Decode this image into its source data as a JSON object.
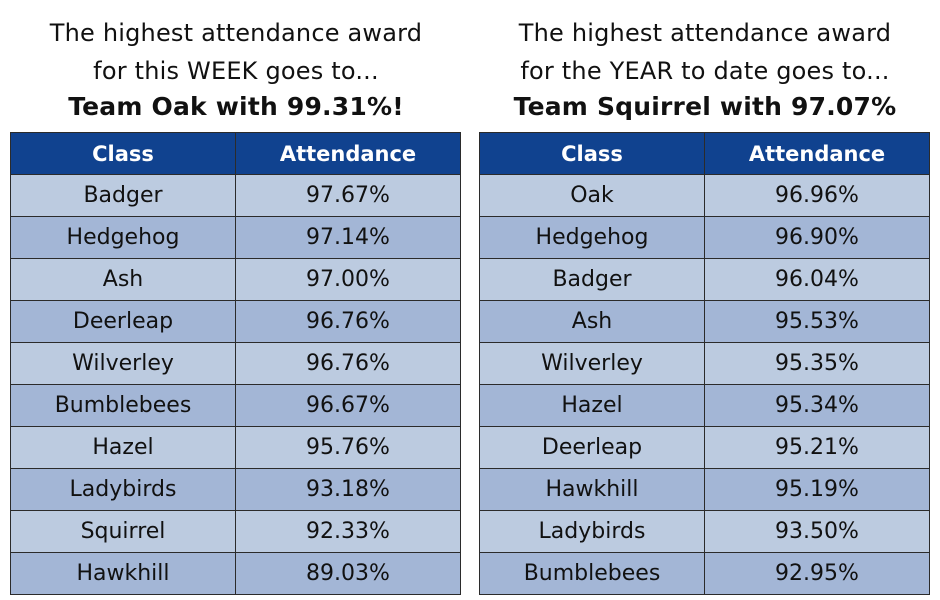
{
  "week": {
    "heading_line1": "The highest attendance award",
    "heading_line2": "for this WEEK goes to...",
    "winner": "Team Oak with 99.31%!",
    "columns": [
      "Class",
      "Attendance"
    ],
    "rows": [
      {
        "class": "Badger",
        "attendance": "97.67%"
      },
      {
        "class": "Hedgehog",
        "attendance": "97.14%"
      },
      {
        "class": "Ash",
        "attendance": "97.00%"
      },
      {
        "class": "Deerleap",
        "attendance": "96.76%"
      },
      {
        "class": "Wilverley",
        "attendance": "96.76%"
      },
      {
        "class": "Bumblebees",
        "attendance": "96.67%"
      },
      {
        "class": "Hazel",
        "attendance": "95.76%"
      },
      {
        "class": "Ladybirds",
        "attendance": "93.18%"
      },
      {
        "class": "Squirrel",
        "attendance": "92.33%"
      },
      {
        "class": "Hawkhill",
        "attendance": "89.03%"
      }
    ]
  },
  "year": {
    "heading_line1": "The highest attendance award",
    "heading_line2": "for the YEAR to date goes to...",
    "winner": "Team Squirrel with 97.07%",
    "columns": [
      "Class",
      "Attendance"
    ],
    "rows": [
      {
        "class": "Oak",
        "attendance": "96.96%"
      },
      {
        "class": "Hedgehog",
        "attendance": "96.90%"
      },
      {
        "class": "Badger",
        "attendance": "96.04%"
      },
      {
        "class": "Ash",
        "attendance": "95.53%"
      },
      {
        "class": "Wilverley",
        "attendance": "95.35%"
      },
      {
        "class": "Hazel",
        "attendance": "95.34%"
      },
      {
        "class": "Deerleap",
        "attendance": "95.21%"
      },
      {
        "class": "Hawkhill",
        "attendance": "95.19%"
      },
      {
        "class": "Ladybirds",
        "attendance": "93.50%"
      },
      {
        "class": "Bumblebees",
        "attendance": "92.95%"
      }
    ]
  },
  "colors": {
    "header_bg": "#10428f",
    "header_text": "#ffffff",
    "row_light": "#bccbe0",
    "row_dark": "#a3b6d6",
    "border": "#2b2b2b"
  }
}
